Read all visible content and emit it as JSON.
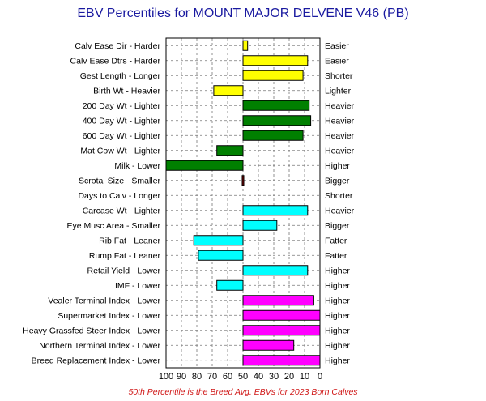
{
  "chart_data": {
    "type": "bar",
    "orientation": "horizontal",
    "title": "EBV Percentiles for MOUNT MAJOR DELVENE V46 (PB)",
    "footnote": "50th Percentile is the Breed Avg. EBVs for 2023 Born Calves",
    "x_ticks": [
      100,
      90,
      80,
      70,
      60,
      50,
      40,
      30,
      20,
      10,
      0
    ],
    "xlim": [
      100,
      0
    ],
    "baseline": 50,
    "grid": true,
    "colors": {
      "calving": "#ffff00",
      "growth": "#008000",
      "fertility": "#800000",
      "carcase": "#00ffff",
      "index": "#ff00ff"
    },
    "traits": [
      {
        "left_label": "Calv Ease Dir - Harder",
        "right_label": "Easier",
        "value": 47,
        "group": "calving"
      },
      {
        "left_label": "Calv Ease Dtrs - Harder",
        "right_label": "Easier",
        "value": 8,
        "group": "calving"
      },
      {
        "left_label": "Gest Length - Longer",
        "right_label": "Shorter",
        "value": 11,
        "group": "calving"
      },
      {
        "left_label": "Birth Wt - Heavier",
        "right_label": "Lighter",
        "value": 69,
        "group": "calving"
      },
      {
        "left_label": "200 Day Wt - Lighter",
        "right_label": "Heavier",
        "value": 7,
        "group": "growth"
      },
      {
        "left_label": "400 Day Wt - Lighter",
        "right_label": "Heavier",
        "value": 6,
        "group": "growth"
      },
      {
        "left_label": "600 Day Wt - Lighter",
        "right_label": "Heavier",
        "value": 11,
        "group": "growth"
      },
      {
        "left_label": "Mat Cow Wt - Lighter",
        "right_label": "Heavier",
        "value": 67,
        "group": "growth"
      },
      {
        "left_label": "Milk - Lower",
        "right_label": "Higher",
        "value": 100,
        "group": "growth"
      },
      {
        "left_label": "Scrotal Size - Smaller",
        "right_label": "Bigger",
        "value": 49,
        "group": "fertility"
      },
      {
        "left_label": "Days to Calv - Longer",
        "right_label": "Shorter",
        "value": null,
        "group": "fertility"
      },
      {
        "left_label": "Carcase Wt - Lighter",
        "right_label": "Heavier",
        "value": 8,
        "group": "carcase"
      },
      {
        "left_label": "Eye Musc Area - Smaller",
        "right_label": "Bigger",
        "value": 28,
        "group": "carcase"
      },
      {
        "left_label": "Rib Fat - Leaner",
        "right_label": "Fatter",
        "value": 82,
        "group": "carcase"
      },
      {
        "left_label": "Rump Fat - Leaner",
        "right_label": "Fatter",
        "value": 79,
        "group": "carcase"
      },
      {
        "left_label": "Retail Yield - Lower",
        "right_label": "Higher",
        "value": 8,
        "group": "carcase"
      },
      {
        "left_label": "IMF - Lower",
        "right_label": "Higher",
        "value": 67,
        "group": "carcase"
      },
      {
        "left_label": "Vealer Terminal Index - Lower",
        "right_label": "Higher",
        "value": 4,
        "group": "index"
      },
      {
        "left_label": "Supermarket Index - Lower",
        "right_label": "Higher",
        "value": 0,
        "group": "index"
      },
      {
        "left_label": "Heavy Grassfed Steer Index - Lower",
        "right_label": "Higher",
        "value": 0,
        "group": "index"
      },
      {
        "left_label": "Northern Terminal Index - Lower",
        "right_label": "Higher",
        "value": 17,
        "group": "index"
      },
      {
        "left_label": "Breed Replacement Index - Lower",
        "right_label": "Higher",
        "value": 0,
        "group": "index"
      }
    ]
  }
}
